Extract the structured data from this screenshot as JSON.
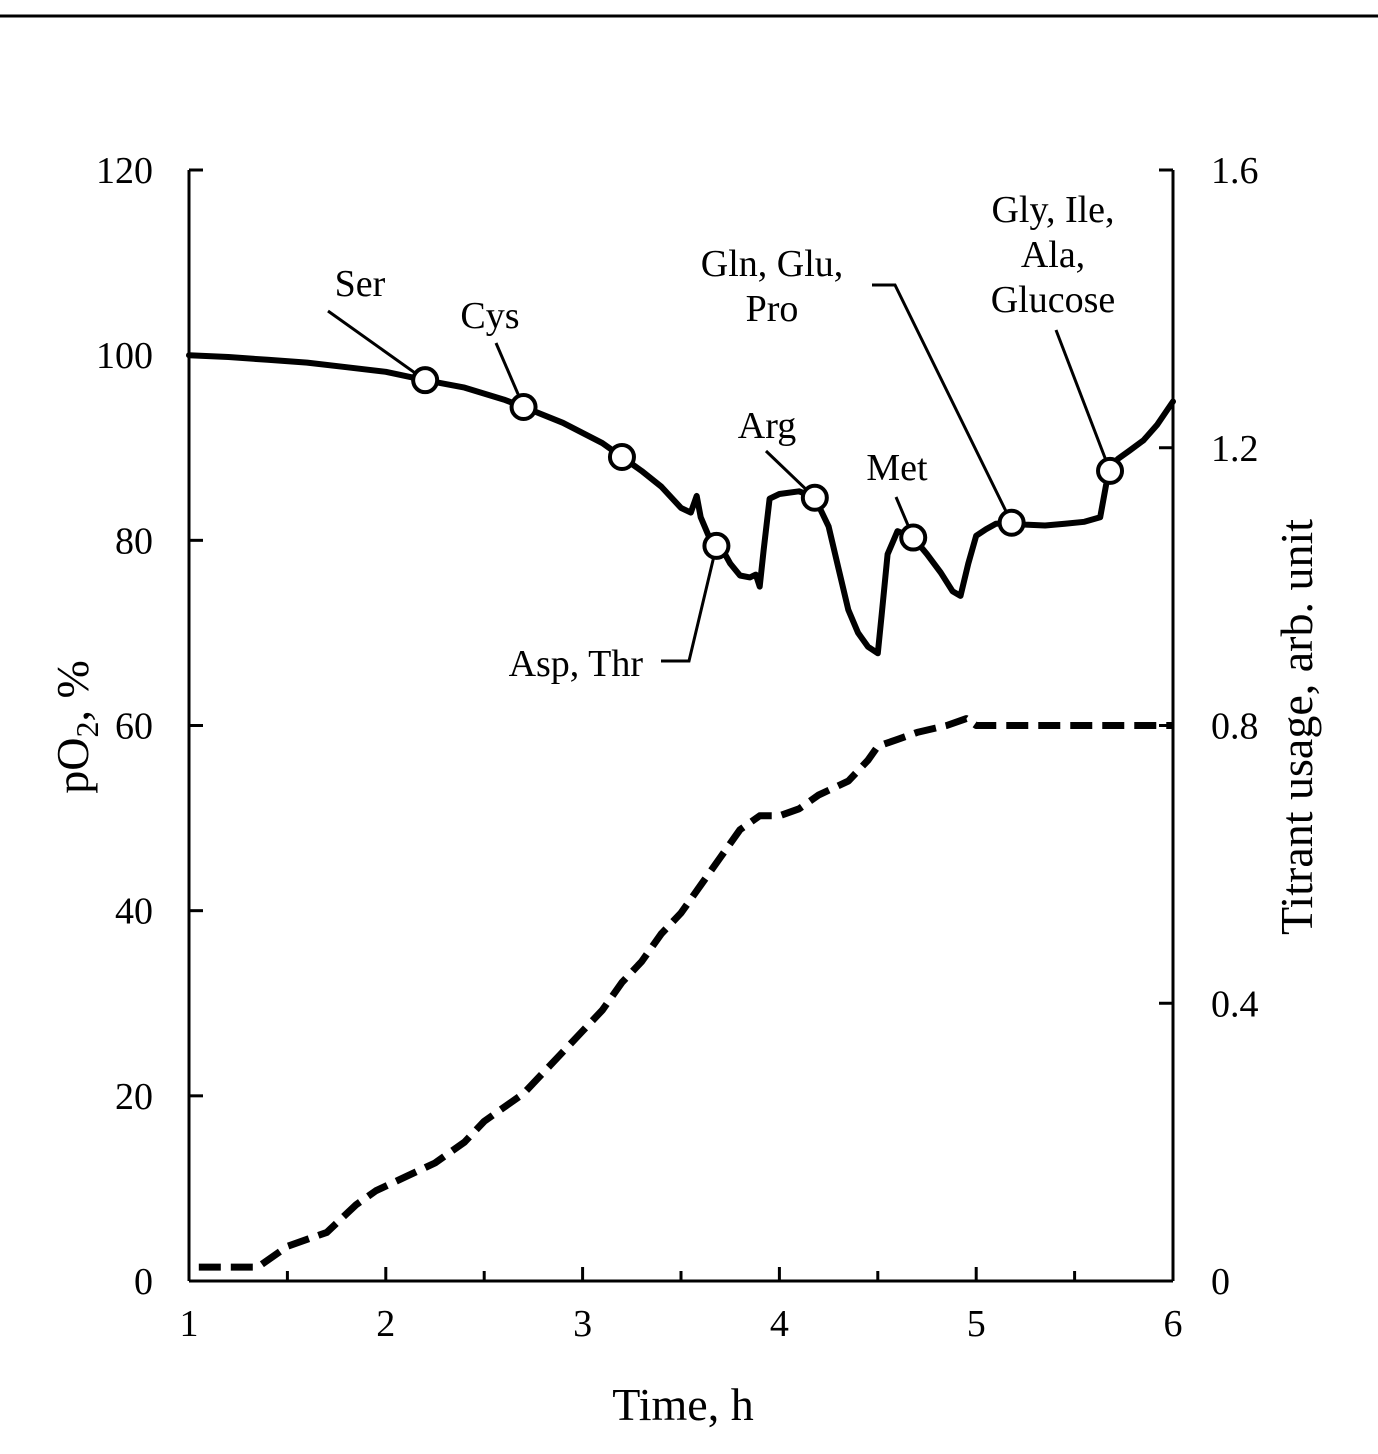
{
  "chart_data": {
    "type": "line",
    "xlabel": "Time, h",
    "ylabel_left": "pO",
    "ylabel_left_sub": "2",
    "ylabel_left_suffix": ", %",
    "ylabel_right": "Titrant usage, arb. unit",
    "xlim": [
      1,
      6
    ],
    "ylim_left": [
      0,
      120
    ],
    "ylim_right": [
      0,
      1.6
    ],
    "x_ticks": [
      "1",
      "2",
      "3",
      "4",
      "5",
      "6"
    ],
    "y_left_ticks": [
      "0",
      "20",
      "40",
      "60",
      "80",
      "100",
      "120"
    ],
    "y_right_ticks": [
      "0",
      "0.4",
      "0.8",
      "1.2",
      "1.6"
    ],
    "grid": false,
    "series": [
      {
        "axis": "left",
        "style": "solid",
        "x": [
          1.0,
          1.2,
          1.4,
          1.6,
          1.8,
          2.0,
          2.2,
          2.4,
          2.6,
          2.7,
          2.9,
          3.1,
          3.2,
          3.3,
          3.4,
          3.5,
          3.55,
          3.58,
          3.6,
          3.65,
          3.7,
          3.75,
          3.8,
          3.85,
          3.88,
          3.9,
          3.92,
          3.95,
          4.0,
          4.1,
          4.18,
          4.25,
          4.3,
          4.35,
          4.4,
          4.45,
          4.5,
          4.52,
          4.55,
          4.6,
          4.68,
          4.75,
          4.82,
          4.88,
          4.92,
          4.96,
          5.0,
          5.05,
          5.1,
          5.18,
          5.25,
          5.35,
          5.45,
          5.55,
          5.63,
          5.66,
          5.68,
          5.72,
          5.78,
          5.85,
          5.92,
          6.0
        ],
        "y": [
          100.0,
          99.8,
          99.5,
          99.2,
          98.7,
          98.2,
          97.3,
          96.5,
          95.2,
          94.4,
          92.7,
          90.5,
          89.0,
          87.5,
          85.8,
          83.5,
          83.0,
          84.8,
          82.5,
          80.0,
          79.4,
          77.5,
          76.2,
          76.0,
          76.3,
          75.0,
          79.0,
          84.5,
          85.0,
          85.3,
          84.6,
          81.5,
          77.0,
          72.5,
          70.0,
          68.5,
          67.8,
          72.0,
          78.5,
          81.0,
          80.3,
          78.5,
          76.5,
          74.5,
          74.0,
          77.5,
          80.5,
          81.2,
          81.8,
          81.9,
          81.7,
          81.6,
          81.8,
          82.0,
          82.5,
          86.0,
          87.5,
          88.8,
          89.7,
          90.8,
          92.5,
          95.0
        ]
      },
      {
        "axis": "right",
        "style": "dashed",
        "x": [
          1.05,
          1.35,
          1.5,
          1.7,
          1.85,
          1.95,
          2.1,
          2.25,
          2.4,
          2.5,
          2.6,
          2.7,
          2.8,
          2.9,
          3.0,
          3.1,
          3.2,
          3.3,
          3.4,
          3.5,
          3.6,
          3.7,
          3.8,
          3.9,
          4.0,
          4.1,
          4.2,
          4.35,
          4.45,
          4.5,
          4.6,
          4.7,
          4.85,
          4.95,
          5.0,
          5.5,
          6.0
        ],
        "y": [
          0.02,
          0.02,
          0.05,
          0.07,
          0.11,
          0.13,
          0.15,
          0.17,
          0.2,
          0.23,
          0.25,
          0.27,
          0.3,
          0.33,
          0.36,
          0.39,
          0.43,
          0.46,
          0.5,
          0.53,
          0.57,
          0.61,
          0.65,
          0.67,
          0.67,
          0.68,
          0.7,
          0.72,
          0.75,
          0.77,
          0.78,
          0.79,
          0.8,
          0.81,
          0.8,
          0.8,
          0.8
        ]
      }
    ],
    "markers": [
      {
        "x": 2.2,
        "y": 97.3,
        "label": [
          "Ser"
        ]
      },
      {
        "x": 2.7,
        "y": 94.4,
        "label": [
          "Cys"
        ]
      },
      {
        "x": 3.2,
        "y": 89.0,
        "label": []
      },
      {
        "x": 3.68,
        "y": 79.4,
        "label": [
          "Asp, Thr"
        ]
      },
      {
        "x": 4.18,
        "y": 84.6,
        "label": [
          "Arg"
        ]
      },
      {
        "x": 4.68,
        "y": 80.3,
        "label": [
          "Met"
        ]
      },
      {
        "x": 5.18,
        "y": 81.9,
        "label": [
          "Gln, Glu,",
          "Pro"
        ]
      },
      {
        "x": 5.68,
        "y": 87.5,
        "label": [
          "Gly, Ile,",
          "Ala,",
          "Glucose"
        ]
      }
    ]
  }
}
